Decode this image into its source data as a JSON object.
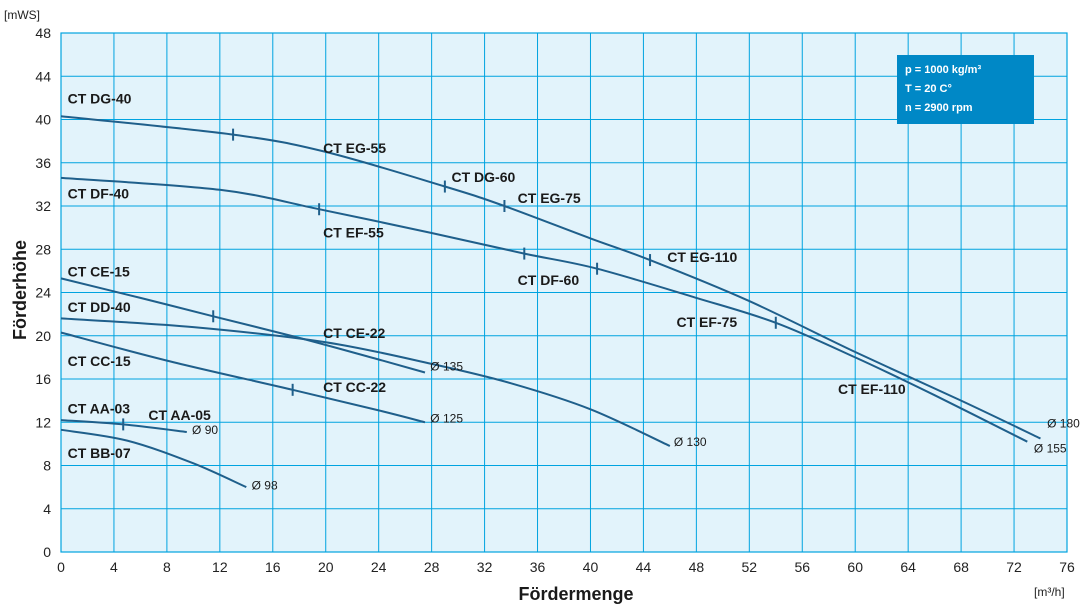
{
  "chart_data": {
    "type": "line",
    "xlabel": "Fördermenge",
    "ylabel": "Förderhöhe",
    "x_unit": "[m³/h]",
    "y_unit": "[mWS]",
    "xlim": [
      0,
      76
    ],
    "ylim": [
      0,
      48
    ],
    "xticks": [
      0,
      4,
      8,
      12,
      16,
      20,
      24,
      28,
      32,
      36,
      40,
      44,
      48,
      52,
      56,
      60,
      64,
      68,
      72,
      76
    ],
    "yticks": [
      0,
      4,
      8,
      12,
      16,
      20,
      24,
      28,
      32,
      36,
      40,
      44,
      48
    ],
    "grid": true,
    "info_box": [
      "p  =  1000 kg/m³",
      "T  =  20 C°",
      "n  =  2900 rpm"
    ],
    "series": [
      {
        "diameter": "Ø 180",
        "x": [
          0,
          13,
          20,
          29,
          33.5,
          40,
          44.5,
          52,
          60,
          68,
          74
        ],
        "y": [
          40.3,
          38.6,
          37,
          33.8,
          32,
          29,
          27,
          23.2,
          18.5,
          14,
          10.5
        ],
        "marks": [
          13,
          29,
          33.5,
          44.5
        ]
      },
      {
        "diameter": "Ø 155",
        "x": [
          0,
          12,
          19.5,
          28,
          35,
          40.5,
          48,
          54,
          60,
          66,
          73
        ],
        "y": [
          34.6,
          33.5,
          31.7,
          29.5,
          27.6,
          26.2,
          23.5,
          21.2,
          18,
          14.5,
          10.2
        ],
        "marks": [
          19.5,
          35,
          40.5,
          54
        ]
      },
      {
        "diameter": "Ø 135",
        "x": [
          0,
          6,
          11.5,
          18,
          24,
          27.5
        ],
        "y": [
          25.3,
          23.5,
          21.8,
          19.8,
          17.8,
          16.6
        ],
        "marks": [
          11.5
        ]
      },
      {
        "diameter": "Ø 130",
        "x": [
          0,
          10,
          20,
          28,
          34,
          40,
          46
        ],
        "y": [
          21.6,
          20.8,
          19.4,
          17.4,
          15.6,
          13.2,
          9.8
        ],
        "marks": []
      },
      {
        "diameter": "Ø 125",
        "x": [
          0,
          8,
          17.5,
          24,
          27.5
        ],
        "y": [
          20.3,
          17.7,
          15,
          13.1,
          12
        ],
        "marks": [
          17.5
        ]
      },
      {
        "diameter": "Ø 90",
        "x": [
          0,
          4.7,
          9.5
        ],
        "y": [
          12.2,
          11.8,
          11.1
        ],
        "marks": [
          4.7
        ]
      },
      {
        "diameter": "Ø 98",
        "x": [
          0,
          5,
          10,
          14
        ],
        "y": [
          11.3,
          10.3,
          8.2,
          6
        ]
      }
    ],
    "labels": [
      {
        "text": "CT DG-40",
        "x": 0.5,
        "y": 41.5
      },
      {
        "text": "CT EG-55",
        "x": 19.8,
        "y": 36.9
      },
      {
        "text": "CT DG-60",
        "x": 29.5,
        "y": 34.2
      },
      {
        "text": "CT EG-75",
        "x": 34.5,
        "y": 32.3
      },
      {
        "text": "CT DF-40",
        "x": 0.5,
        "y": 32.7
      },
      {
        "text": "CT EF-55",
        "x": 19.8,
        "y": 29.1
      },
      {
        "text": "CT EG-110",
        "x": 45.8,
        "y": 26.8
      },
      {
        "text": "CT DF-60",
        "x": 34.5,
        "y": 24.7
      },
      {
        "text": "CT CE-15",
        "x": 0.5,
        "y": 25.5
      },
      {
        "text": "CT DD-40",
        "x": 0.5,
        "y": 22.2
      },
      {
        "text": "CT EF-75",
        "x": 46.5,
        "y": 20.8
      },
      {
        "text": "CT CE-22",
        "x": 19.8,
        "y": 19.8
      },
      {
        "text": "CT CC-15",
        "x": 0.5,
        "y": 17.2
      },
      {
        "text": "CT CC-22",
        "x": 19.8,
        "y": 14.8
      },
      {
        "text": "CT EF-110",
        "x": 58.7,
        "y": 14.6
      },
      {
        "text": "CT AA-03",
        "x": 0.5,
        "y": 12.8
      },
      {
        "text": "CT AA-05",
        "x": 6.6,
        "y": 12.2
      },
      {
        "text": "CT BB-07",
        "x": 0.5,
        "y": 8.7
      }
    ],
    "diameter_labels": [
      {
        "text": "Ø 135",
        "x": 27.9,
        "y": 16.8
      },
      {
        "text": "Ø 130",
        "x": 46.3,
        "y": 9.8
      },
      {
        "text": "Ø 125",
        "x": 27.9,
        "y": 12
      },
      {
        "text": "Ø 90",
        "x": 9.9,
        "y": 10.9
      },
      {
        "text": "Ø 98",
        "x": 14.4,
        "y": 5.8
      },
      {
        "text": "Ø 180",
        "x": 74.5,
        "y": 11.5
      },
      {
        "text": "Ø 155",
        "x": 73.5,
        "y": 9.2
      }
    ]
  },
  "colors": {
    "plot_background": "#e2f3fb",
    "grid": "#00a3e0",
    "curve": "#1f5f8b",
    "info_box": "#0088c6"
  }
}
